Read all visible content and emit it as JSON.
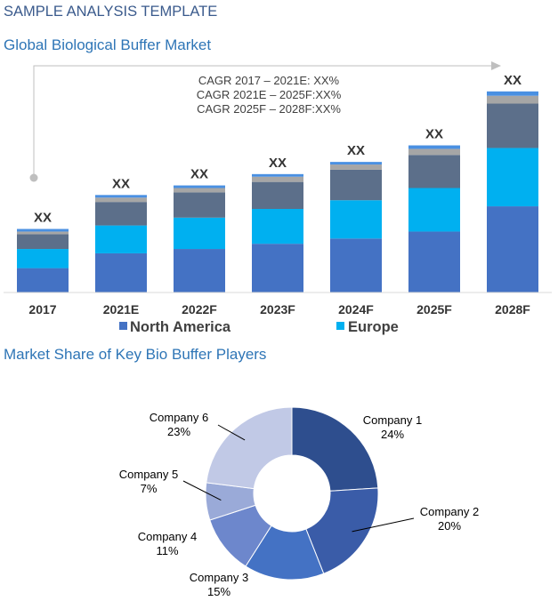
{
  "header": {
    "title": "SAMPLE ANALYSIS TEMPLATE"
  },
  "chart_data": [
    {
      "type": "bar",
      "stacked": true,
      "title": "Global Biological Buffer Market",
      "categories": [
        "2017",
        "2021E",
        "2022F",
        "2023F",
        "2024F",
        "2025F",
        "2028F"
      ],
      "series": [
        {
          "name": "North America",
          "color": "#4472c4",
          "values": [
            28,
            45,
            50,
            56,
            62,
            70,
            99
          ]
        },
        {
          "name": "Europe",
          "color": "#00b0f0",
          "values": [
            22,
            32,
            36,
            40,
            44,
            50,
            67
          ]
        },
        {
          "name": "",
          "color": "#5c6f8a",
          "values": [
            17,
            27,
            29,
            31,
            35,
            38,
            51
          ]
        },
        {
          "name": "",
          "color": "#a6a6a6",
          "values": [
            3,
            5,
            5,
            6,
            6,
            7,
            9
          ]
        },
        {
          "name": "",
          "color": "#4a90e2",
          "values": [
            3,
            3,
            3,
            3,
            3,
            4,
            5
          ]
        }
      ],
      "data_labels": [
        "XX",
        "XX",
        "XX",
        "XX",
        "XX",
        "XX",
        "XX"
      ],
      "annotation": [
        "CAGR 2017 – 2021E: XX%",
        "CAGR 2021E – 2025F:XX%",
        "CAGR 2025F – 2028F:XX%"
      ],
      "ylim": [
        0,
        240
      ],
      "grid": false,
      "legend": "bottom",
      "legend_entries": [
        "North America",
        "Europe"
      ]
    },
    {
      "type": "pie",
      "donut": true,
      "title": "Market Share of Key Bio Buffer Players",
      "slices": [
        {
          "label": "Company 1",
          "value": 24,
          "value_label": "24%",
          "color": "#2e4e8e"
        },
        {
          "label": "Company 2",
          "value": 20,
          "value_label": "20%",
          "color": "#3a5ca8"
        },
        {
          "label": "Company 3",
          "value": 15,
          "value_label": "15%",
          "color": "#4472c4"
        },
        {
          "label": "Company 4",
          "value": 11,
          "value_label": "11%",
          "color": "#6d87cc"
        },
        {
          "label": "Company 5",
          "value": 7,
          "value_label": "7%",
          "color": "#9aaad8"
        },
        {
          "label": "Company 6",
          "value": 23,
          "value_label": "23%",
          "color": "#c1c9e6"
        }
      ],
      "legend": "none"
    }
  ]
}
